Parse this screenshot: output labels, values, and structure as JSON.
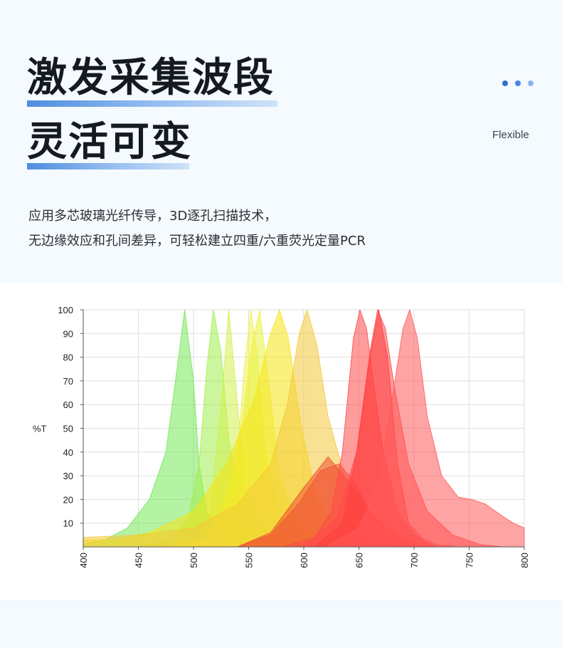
{
  "header": {
    "title_line1": "激发采集波段",
    "title_line2": "灵活可变",
    "tag": "Flexible"
  },
  "description": {
    "line1": "应用多芯玻璃光纤传导，3D逐孔扫描技术，",
    "line2": "无边缘效应和孔间差异，可轻松建立四重/六重荧光定量PCR"
  },
  "colors": {
    "accent": "#2f6fd6",
    "title": "#151a22",
    "background": "#f4fafd"
  },
  "chart_data": {
    "type": "area",
    "title": "",
    "xlabel": "",
    "ylabel": "%T",
    "xlim": [
      400,
      800
    ],
    "ylim": [
      0,
      100
    ],
    "x_ticks": [
      400,
      450,
      500,
      550,
      600,
      650,
      700,
      750,
      800
    ],
    "y_ticks": [
      10,
      20,
      30,
      40,
      50,
      60,
      70,
      80,
      90,
      100
    ],
    "grid": true,
    "legend": "none",
    "series": [
      {
        "color": "#76e85a",
        "points": [
          [
            400,
            1
          ],
          [
            420,
            3
          ],
          [
            440,
            8
          ],
          [
            460,
            20
          ],
          [
            475,
            40
          ],
          [
            485,
            75
          ],
          [
            492,
            100
          ],
          [
            500,
            70
          ],
          [
            505,
            35
          ],
          [
            512,
            15
          ],
          [
            525,
            5
          ],
          [
            545,
            1
          ],
          [
            560,
            0
          ]
        ]
      },
      {
        "color": "#a2ee4e",
        "points": [
          [
            450,
            0
          ],
          [
            480,
            3
          ],
          [
            495,
            12
          ],
          [
            505,
            35
          ],
          [
            512,
            75
          ],
          [
            518,
            100
          ],
          [
            525,
            82
          ],
          [
            532,
            45
          ],
          [
            545,
            15
          ],
          [
            565,
            4
          ],
          [
            585,
            1
          ],
          [
            600,
            0
          ]
        ]
      },
      {
        "color": "#d2f04e",
        "points": [
          [
            470,
            0
          ],
          [
            500,
            3
          ],
          [
            515,
            15
          ],
          [
            525,
            60
          ],
          [
            532,
            100
          ],
          [
            540,
            60
          ],
          [
            548,
            22
          ],
          [
            560,
            8
          ],
          [
            580,
            2
          ],
          [
            600,
            0
          ]
        ]
      },
      {
        "color": "#f0f04a",
        "points": [
          [
            490,
            0
          ],
          [
            520,
            4
          ],
          [
            538,
            25
          ],
          [
            546,
            75
          ],
          [
            552,
            100
          ],
          [
            558,
            80
          ],
          [
            565,
            40
          ],
          [
            580,
            12
          ],
          [
            600,
            3
          ],
          [
            620,
            0
          ]
        ]
      },
      {
        "color": "#eaf23a",
        "points": [
          [
            480,
            0
          ],
          [
            510,
            3
          ],
          [
            530,
            22
          ],
          [
            545,
            55
          ],
          [
            553,
            85
          ],
          [
            560,
            100
          ],
          [
            568,
            70
          ],
          [
            578,
            30
          ],
          [
            595,
            10
          ],
          [
            620,
            2
          ],
          [
            640,
            0
          ]
        ]
      },
      {
        "color": "#f6e414",
        "points": [
          [
            400,
            3
          ],
          [
            430,
            3
          ],
          [
            460,
            6
          ],
          [
            500,
            15
          ],
          [
            530,
            35
          ],
          [
            555,
            62
          ],
          [
            570,
            90
          ],
          [
            578,
            100
          ],
          [
            586,
            88
          ],
          [
            598,
            50
          ],
          [
            612,
            20
          ],
          [
            630,
            8
          ],
          [
            660,
            2
          ],
          [
            690,
            0
          ]
        ]
      },
      {
        "color": "#f4c83a",
        "points": [
          [
            400,
            4
          ],
          [
            450,
            5
          ],
          [
            500,
            8
          ],
          [
            540,
            18
          ],
          [
            570,
            35
          ],
          [
            585,
            60
          ],
          [
            596,
            90
          ],
          [
            603,
            100
          ],
          [
            612,
            85
          ],
          [
            622,
            55
          ],
          [
            638,
            28
          ],
          [
            660,
            12
          ],
          [
            690,
            4
          ],
          [
            720,
            0
          ]
        ]
      },
      {
        "color": "#f2563a",
        "points": [
          [
            540,
            0
          ],
          [
            570,
            5
          ],
          [
            595,
            18
          ],
          [
            615,
            32
          ],
          [
            632,
            35
          ],
          [
            645,
            28
          ],
          [
            660,
            15
          ],
          [
            680,
            5
          ],
          [
            700,
            1
          ],
          [
            710,
            0
          ]
        ]
      },
      {
        "color": "#f05030",
        "points": [
          [
            540,
            0
          ],
          [
            570,
            6
          ],
          [
            600,
            25
          ],
          [
            622,
            38
          ],
          [
            640,
            28
          ],
          [
            660,
            15
          ],
          [
            680,
            6
          ],
          [
            700,
            1
          ],
          [
            710,
            0
          ]
        ]
      },
      {
        "color": "#ff4a4a",
        "points": [
          [
            580,
            0
          ],
          [
            610,
            4
          ],
          [
            625,
            15
          ],
          [
            635,
            40
          ],
          [
            645,
            88
          ],
          [
            651,
            100
          ],
          [
            657,
            92
          ],
          [
            663,
            70
          ],
          [
            672,
            40
          ],
          [
            685,
            15
          ],
          [
            700,
            5
          ],
          [
            720,
            1
          ],
          [
            740,
            0
          ]
        ]
      },
      {
        "color": "#ff3030",
        "points": [
          [
            610,
            0
          ],
          [
            635,
            10
          ],
          [
            648,
            40
          ],
          [
            660,
            80
          ],
          [
            668,
            100
          ],
          [
            676,
            80
          ],
          [
            685,
            35
          ],
          [
            695,
            10
          ],
          [
            710,
            2
          ],
          [
            720,
            0
          ]
        ]
      },
      {
        "color": "#ff4a4a",
        "points": [
          [
            600,
            0
          ],
          [
            630,
            12
          ],
          [
            648,
            40
          ],
          [
            660,
            82
          ],
          [
            667,
            100
          ],
          [
            674,
            92
          ],
          [
            682,
            68
          ],
          [
            695,
            35
          ],
          [
            712,
            15
          ],
          [
            735,
            5
          ],
          [
            760,
            1
          ],
          [
            780,
            0
          ]
        ]
      },
      {
        "color": "#ff5a5a",
        "points": [
          [
            620,
            0
          ],
          [
            650,
            8
          ],
          [
            668,
            28
          ],
          [
            680,
            62
          ],
          [
            690,
            92
          ],
          [
            696,
            100
          ],
          [
            703,
            88
          ],
          [
            712,
            55
          ],
          [
            725,
            30
          ],
          [
            740,
            21
          ],
          [
            752,
            20
          ],
          [
            765,
            18
          ],
          [
            780,
            13
          ],
          [
            790,
            10
          ],
          [
            800,
            8
          ]
        ]
      }
    ]
  }
}
